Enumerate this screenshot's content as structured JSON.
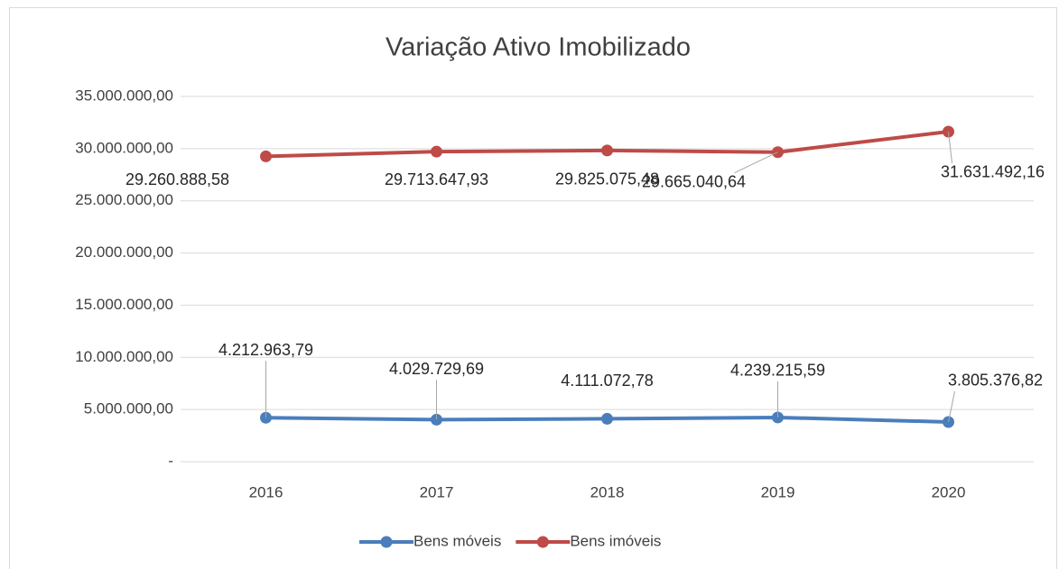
{
  "chart_data": {
    "type": "line",
    "title": "Variação Ativo Imobilizado",
    "categories": [
      "2016",
      "2017",
      "2018",
      "2019",
      "2020"
    ],
    "series": [
      {
        "name": "Bens móveis",
        "color": "#4a7ebb",
        "values": [
          4212963.79,
          4029729.69,
          4111072.78,
          4239215.59,
          3805376.82
        ],
        "value_labels": [
          "4.212.963,79",
          "4.029.729,69",
          "4.111.072,78",
          "4.239.215,59",
          "3.805.376,82"
        ]
      },
      {
        "name": "Bens imóveis",
        "color": "#be4b48",
        "values": [
          29260888.58,
          29713647.93,
          29825075.48,
          29665040.64,
          31631492.16
        ],
        "value_labels": [
          "29.260.888,58",
          "29.713.647,93",
          "29.825.075,48",
          "29.665.040,64",
          "31.631.492,16"
        ]
      }
    ],
    "ylim": [
      0,
      35000000
    ],
    "yticks": [
      {
        "value": 0,
        "label": "-"
      },
      {
        "value": 5000000,
        "label": "5.000.000,00"
      },
      {
        "value": 10000000,
        "label": "10.000.000,00"
      },
      {
        "value": 15000000,
        "label": "15.000.000,00"
      },
      {
        "value": 20000000,
        "label": "20.000.000,00"
      },
      {
        "value": 25000000,
        "label": "25.000.000,00"
      },
      {
        "value": 30000000,
        "label": "30.000.000,00"
      },
      {
        "value": 35000000,
        "label": "35.000.000,00"
      }
    ],
    "grid": true,
    "legend": "bottom"
  }
}
